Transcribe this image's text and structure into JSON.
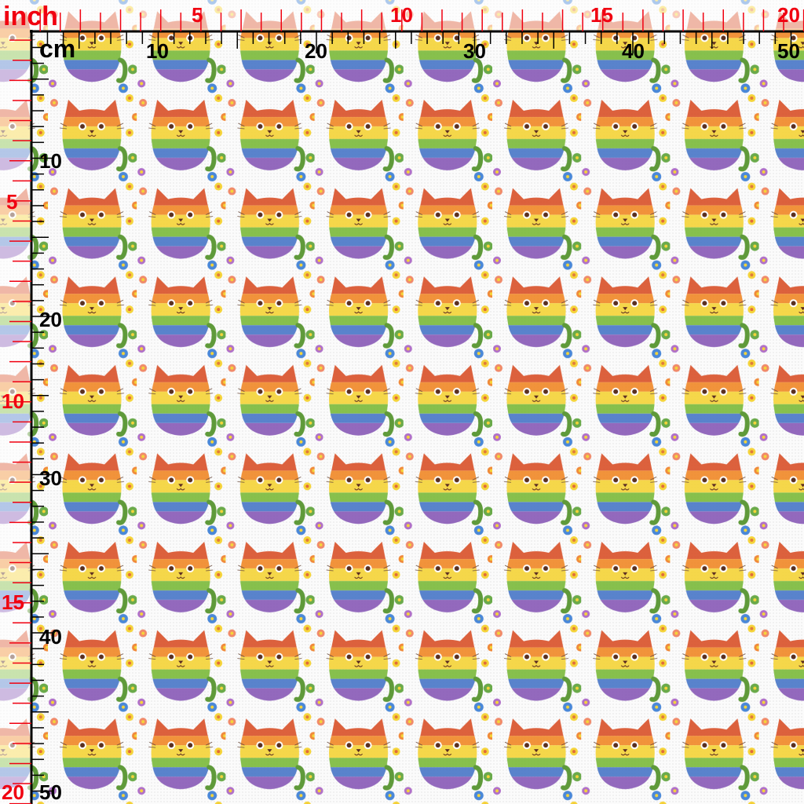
{
  "ruler": {
    "inch_unit": "inch",
    "cm_unit": "cm",
    "top_inch_labels": [
      "5",
      "10",
      "15",
      "20"
    ],
    "top_cm_labels": [
      "10",
      "20",
      "30",
      "40",
      "50"
    ],
    "left_inch_labels": [
      "5",
      "10",
      "15",
      "20"
    ],
    "left_cm_labels": [
      "10",
      "20",
      "30",
      "40",
      "50"
    ],
    "inch_color": "#f00010",
    "cm_color": "#000000"
  },
  "fabric": {
    "motif": "rainbow cat with flowers",
    "stripe_colors": [
      "#d9532c",
      "#f08a2a",
      "#f5d43a",
      "#7dbb3e",
      "#4b78c8",
      "#8a5cb8"
    ]
  }
}
